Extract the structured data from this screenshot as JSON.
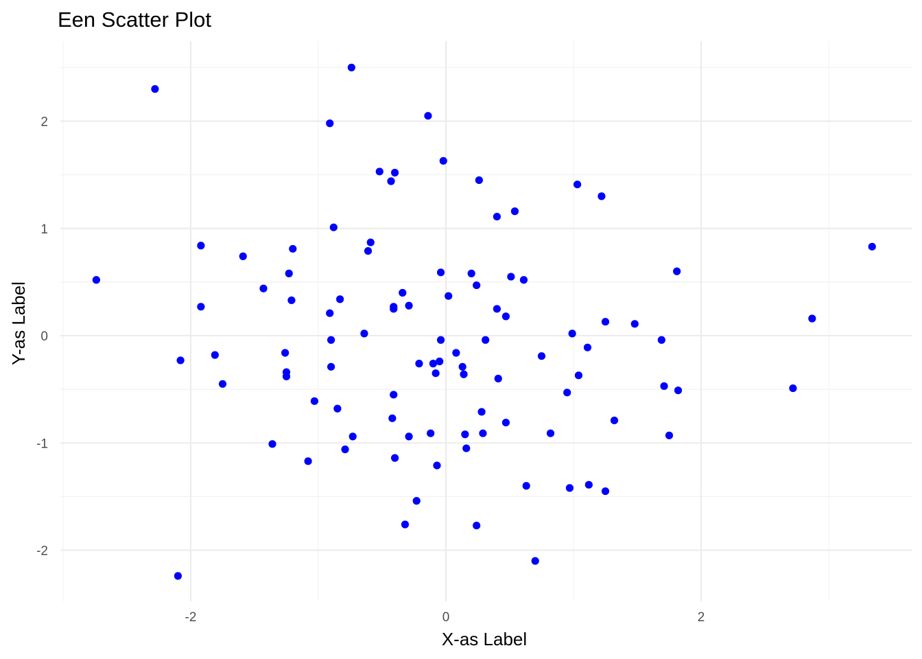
{
  "chart_data": {
    "type": "scatter",
    "title": "Een Scatter Plot",
    "xlabel": "X-as Label",
    "ylabel": "Y-as Label",
    "xlim": [
      -3.0,
      3.6
    ],
    "ylim": [
      -2.45,
      2.65
    ],
    "x_ticks": [
      -2,
      0,
      2
    ],
    "x_tick_labels": [
      "-2",
      "0",
      "2"
    ],
    "y_ticks": [
      -2,
      -1,
      0,
      1,
      2
    ],
    "y_tick_labels": [
      "-2",
      "-1",
      "0",
      "1",
      "2"
    ],
    "x_minor_ticks": [
      -3,
      -1,
      1,
      3
    ],
    "y_minor_ticks": [
      -1.5,
      -0.5,
      0.5,
      1.5,
      2.5
    ],
    "grid": true,
    "legend": "none",
    "point_color": "#0000ff",
    "points": [
      {
        "x": -0.74,
        "y": 2.5
      },
      {
        "x": -2.28,
        "y": 2.3
      },
      {
        "x": -0.14,
        "y": 2.05
      },
      {
        "x": -0.91,
        "y": 1.98
      },
      {
        "x": -0.02,
        "y": 1.63
      },
      {
        "x": -0.52,
        "y": 1.53
      },
      {
        "x": -0.4,
        "y": 1.52
      },
      {
        "x": -0.43,
        "y": 1.44
      },
      {
        "x": 0.26,
        "y": 1.45
      },
      {
        "x": 1.03,
        "y": 1.41
      },
      {
        "x": 1.22,
        "y": 1.3
      },
      {
        "x": 0.54,
        "y": 1.16
      },
      {
        "x": 0.4,
        "y": 1.11
      },
      {
        "x": -0.88,
        "y": 1.01
      },
      {
        "x": -0.59,
        "y": 0.87
      },
      {
        "x": -1.92,
        "y": 0.84
      },
      {
        "x": -1.2,
        "y": 0.81
      },
      {
        "x": -0.61,
        "y": 0.79
      },
      {
        "x": -1.59,
        "y": 0.74
      },
      {
        "x": 3.34,
        "y": 0.83
      },
      {
        "x": 1.81,
        "y": 0.6
      },
      {
        "x": -2.74,
        "y": 0.52
      },
      {
        "x": -1.23,
        "y": 0.58
      },
      {
        "x": -0.04,
        "y": 0.59
      },
      {
        "x": 0.2,
        "y": 0.58
      },
      {
        "x": 0.51,
        "y": 0.55
      },
      {
        "x": 0.61,
        "y": 0.52
      },
      {
        "x": 0.24,
        "y": 0.47
      },
      {
        "x": -1.43,
        "y": 0.44
      },
      {
        "x": -0.34,
        "y": 0.4
      },
      {
        "x": 0.02,
        "y": 0.37
      },
      {
        "x": -0.83,
        "y": 0.34
      },
      {
        "x": -1.21,
        "y": 0.33
      },
      {
        "x": -1.92,
        "y": 0.27
      },
      {
        "x": -0.41,
        "y": 0.27
      },
      {
        "x": -0.29,
        "y": 0.28
      },
      {
        "x": -0.41,
        "y": 0.25
      },
      {
        "x": 0.4,
        "y": 0.25
      },
      {
        "x": -0.91,
        "y": 0.21
      },
      {
        "x": 0.47,
        "y": 0.18
      },
      {
        "x": 1.25,
        "y": 0.13
      },
      {
        "x": 1.48,
        "y": 0.11
      },
      {
        "x": 2.87,
        "y": 0.16
      },
      {
        "x": -0.64,
        "y": 0.02
      },
      {
        "x": 0.99,
        "y": 0.02
      },
      {
        "x": -0.9,
        "y": -0.04
      },
      {
        "x": -0.04,
        "y": -0.04
      },
      {
        "x": 0.31,
        "y": -0.04
      },
      {
        "x": 1.69,
        "y": -0.04
      },
      {
        "x": 1.11,
        "y": -0.11
      },
      {
        "x": -2.08,
        "y": -0.23
      },
      {
        "x": -1.81,
        "y": -0.18
      },
      {
        "x": -1.26,
        "y": -0.16
      },
      {
        "x": 0.08,
        "y": -0.16
      },
      {
        "x": 0.75,
        "y": -0.19
      },
      {
        "x": -0.21,
        "y": -0.26
      },
      {
        "x": -0.1,
        "y": -0.26
      },
      {
        "x": -0.05,
        "y": -0.24
      },
      {
        "x": 0.13,
        "y": -0.29
      },
      {
        "x": -0.9,
        "y": -0.29
      },
      {
        "x": -1.25,
        "y": -0.34
      },
      {
        "x": -1.25,
        "y": -0.38
      },
      {
        "x": -0.08,
        "y": -0.35
      },
      {
        "x": 0.14,
        "y": -0.36
      },
      {
        "x": 1.04,
        "y": -0.37
      },
      {
        "x": 0.41,
        "y": -0.4
      },
      {
        "x": -1.75,
        "y": -0.45
      },
      {
        "x": 1.71,
        "y": -0.47
      },
      {
        "x": 1.82,
        "y": -0.51
      },
      {
        "x": 2.72,
        "y": -0.49
      },
      {
        "x": -0.41,
        "y": -0.55
      },
      {
        "x": 0.95,
        "y": -0.53
      },
      {
        "x": -1.03,
        "y": -0.61
      },
      {
        "x": -0.85,
        "y": -0.68
      },
      {
        "x": 0.28,
        "y": -0.71
      },
      {
        "x": -0.42,
        "y": -0.77
      },
      {
        "x": 0.47,
        "y": -0.81
      },
      {
        "x": 1.32,
        "y": -0.79
      },
      {
        "x": -0.12,
        "y": -0.91
      },
      {
        "x": 0.15,
        "y": -0.92
      },
      {
        "x": 0.29,
        "y": -0.91
      },
      {
        "x": 0.82,
        "y": -0.91
      },
      {
        "x": -0.73,
        "y": -0.94
      },
      {
        "x": -0.29,
        "y": -0.94
      },
      {
        "x": 1.75,
        "y": -0.93
      },
      {
        "x": -1.36,
        "y": -1.01
      },
      {
        "x": 0.16,
        "y": -1.05
      },
      {
        "x": -0.79,
        "y": -1.06
      },
      {
        "x": -0.4,
        "y": -1.14
      },
      {
        "x": -1.08,
        "y": -1.17
      },
      {
        "x": -0.07,
        "y": -1.21
      },
      {
        "x": 0.63,
        "y": -1.4
      },
      {
        "x": 0.97,
        "y": -1.42
      },
      {
        "x": 1.12,
        "y": -1.39
      },
      {
        "x": 1.25,
        "y": -1.45
      },
      {
        "x": -0.23,
        "y": -1.54
      },
      {
        "x": -0.32,
        "y": -1.76
      },
      {
        "x": 0.24,
        "y": -1.77
      },
      {
        "x": 0.7,
        "y": -2.1
      },
      {
        "x": -2.1,
        "y": -2.24
      }
    ]
  }
}
